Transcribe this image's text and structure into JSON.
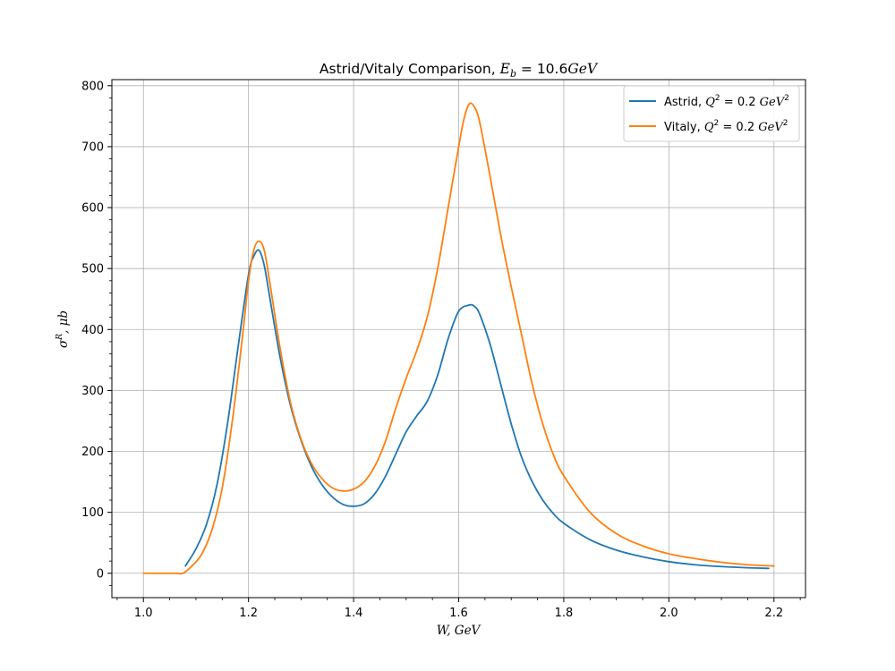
{
  "chart_data": {
    "type": "line",
    "title": "Astrid/Vitaly Comparison, E_b = 10.6GeV",
    "title_parts": {
      "prefix": "Astrid/Vitaly Comparison, ",
      "sym": "E",
      "sub": "b",
      "eq": " = 10.6",
      "unit": "GeV"
    },
    "xlabel": "W, GeV",
    "ylabel": "σ^R, μb",
    "xlim": [
      0.94,
      2.26
    ],
    "ylim": [
      -40,
      810
    ],
    "xticks": [
      1.0,
      1.2,
      1.4,
      1.6,
      1.8,
      2.0,
      2.2
    ],
    "xtick_labels": [
      "1.0",
      "1.2",
      "1.4",
      "1.6",
      "1.8",
      "2.0",
      "2.2"
    ],
    "yticks": [
      0,
      100,
      200,
      300,
      400,
      500,
      600,
      700,
      800
    ],
    "ytick_labels": [
      "0",
      "100",
      "200",
      "300",
      "400",
      "500",
      "600",
      "700",
      "800"
    ],
    "grid": true,
    "legend_position": "top-right",
    "series": [
      {
        "name": "Astrid, Q² = 0.2 GeV²",
        "legend": {
          "label": "Astrid, ",
          "q": "Q",
          "exp": "2",
          "rest": " = 0.2 ",
          "unit": "GeV",
          "unit_exp": "2"
        },
        "color": "#1f77b4",
        "x": [
          1.08,
          1.1,
          1.12,
          1.14,
          1.16,
          1.18,
          1.2,
          1.21,
          1.22,
          1.23,
          1.24,
          1.26,
          1.28,
          1.3,
          1.32,
          1.34,
          1.36,
          1.38,
          1.4,
          1.42,
          1.44,
          1.46,
          1.48,
          1.5,
          1.52,
          1.54,
          1.56,
          1.58,
          1.6,
          1.62,
          1.63,
          1.64,
          1.66,
          1.68,
          1.7,
          1.72,
          1.74,
          1.76,
          1.78,
          1.8,
          1.85,
          1.9,
          1.95,
          2.0,
          2.05,
          2.1,
          2.15,
          2.19
        ],
        "y": [
          12,
          40,
          80,
          145,
          245,
          370,
          490,
          520,
          530,
          505,
          455,
          355,
          275,
          218,
          175,
          145,
          125,
          113,
          110,
          114,
          130,
          158,
          195,
          232,
          258,
          282,
          325,
          385,
          430,
          440,
          438,
          425,
          375,
          310,
          245,
          190,
          150,
          120,
          98,
          82,
          55,
          38,
          27,
          19,
          14,
          11,
          9,
          8
        ]
      },
      {
        "name": "Vitaly, Q² = 0.2 GeV²",
        "legend": {
          "label": "Vitaly, ",
          "q": "Q",
          "exp": "2",
          "rest": " = 0.2 ",
          "unit": "GeV",
          "unit_exp": "2"
        },
        "color": "#ff7f0e",
        "x": [
          1.0,
          1.02,
          1.04,
          1.06,
          1.075,
          1.09,
          1.11,
          1.13,
          1.15,
          1.17,
          1.19,
          1.2,
          1.21,
          1.22,
          1.23,
          1.24,
          1.26,
          1.28,
          1.3,
          1.32,
          1.34,
          1.36,
          1.38,
          1.4,
          1.42,
          1.44,
          1.46,
          1.48,
          1.5,
          1.52,
          1.54,
          1.56,
          1.58,
          1.6,
          1.61,
          1.62,
          1.63,
          1.64,
          1.66,
          1.68,
          1.7,
          1.72,
          1.74,
          1.76,
          1.78,
          1.8,
          1.85,
          1.9,
          1.95,
          2.0,
          2.05,
          2.1,
          2.15,
          2.2
        ],
        "y": [
          0,
          0,
          0,
          0,
          0,
          10,
          30,
          70,
          140,
          255,
          400,
          480,
          530,
          545,
          530,
          480,
          370,
          280,
          220,
          180,
          155,
          140,
          135,
          138,
          150,
          175,
          215,
          270,
          320,
          365,
          420,
          500,
          600,
          700,
          745,
          770,
          765,
          740,
          650,
          555,
          470,
          390,
          310,
          245,
          195,
          160,
          100,
          65,
          45,
          32,
          24,
          18,
          14,
          12
        ]
      }
    ]
  }
}
